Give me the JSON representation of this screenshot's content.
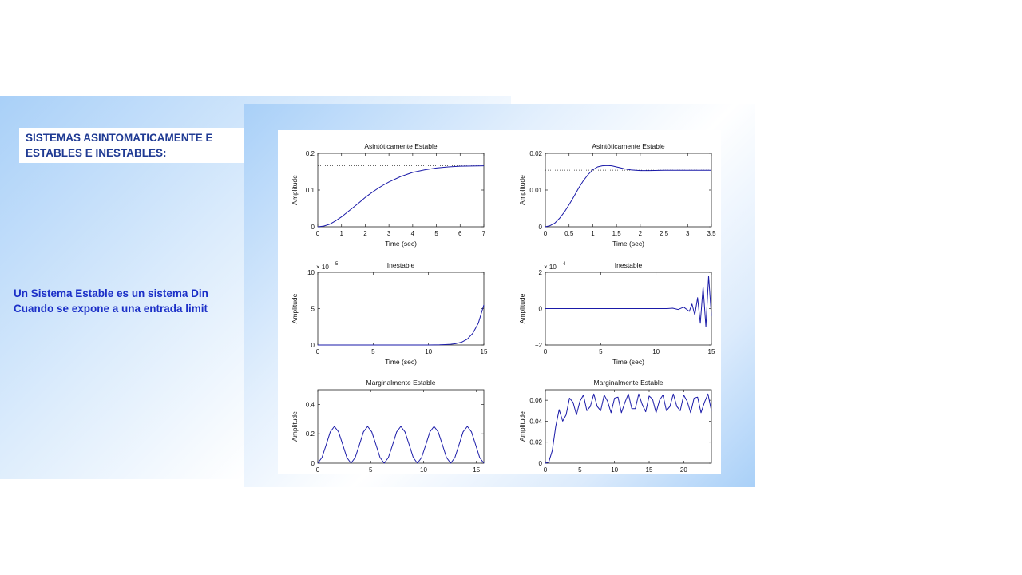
{
  "slide": {
    "title_line1": "SISTEMAS ASINTOMATICAMENTE E",
    "title_line2": "ESTABLES E INESTABLES:",
    "body_line1": "Un Sistema Estable es un sistema Din",
    "body_line2": "Cuando se expone a una entrada limit"
  },
  "colors": {
    "curve": "#1a1aa8",
    "title_text": "#1f3a93",
    "body_text": "#1b2fc7"
  },
  "chart_data": [
    {
      "type": "line",
      "title": "Asintóticamente Estable",
      "xlabel": "Time (sec)",
      "ylabel": "Amplitude",
      "exponent": "",
      "xlim": [
        0,
        7
      ],
      "ylim": [
        0,
        0.2
      ],
      "xticks": [
        "0",
        "1",
        "2",
        "3",
        "4",
        "5",
        "6",
        "7"
      ],
      "yticks": [
        "0",
        "0.1",
        "0.2"
      ],
      "x": [
        0,
        0.25,
        0.5,
        0.75,
        1,
        1.25,
        1.5,
        1.75,
        2,
        2.25,
        2.5,
        2.75,
        3,
        3.5,
        4,
        4.5,
        5,
        5.5,
        6,
        7
      ],
      "y": [
        0,
        0.002,
        0.007,
        0.016,
        0.027,
        0.04,
        0.053,
        0.066,
        0.08,
        0.092,
        0.103,
        0.113,
        0.122,
        0.137,
        0.148,
        0.155,
        0.16,
        0.163,
        0.165,
        0.166
      ],
      "reference_line": 0.166
    },
    {
      "type": "line",
      "title": "Asintóticamente Estable",
      "xlabel": "Time (sec)",
      "ylabel": "Amplitude",
      "exponent": "",
      "xlim": [
        0,
        3.5
      ],
      "ylim": [
        0,
        0.02
      ],
      "xticks": [
        "0",
        "0.5",
        "1",
        "1.5",
        "2",
        "2.5",
        "3",
        "3.5"
      ],
      "yticks": [
        "0",
        "0.01",
        "0.02"
      ],
      "x": [
        0,
        0.1,
        0.2,
        0.3,
        0.4,
        0.5,
        0.6,
        0.7,
        0.8,
        0.9,
        1,
        1.1,
        1.2,
        1.3,
        1.4,
        1.5,
        1.6,
        1.7,
        1.8,
        1.9,
        2,
        2.2,
        2.5,
        3,
        3.5
      ],
      "y": [
        0,
        0.0003,
        0.001,
        0.0023,
        0.004,
        0.006,
        0.0082,
        0.0105,
        0.0125,
        0.0142,
        0.0155,
        0.0163,
        0.0166,
        0.0167,
        0.0166,
        0.0163,
        0.016,
        0.0157,
        0.0155,
        0.0154,
        0.0153,
        0.0153,
        0.0154,
        0.0154,
        0.0154
      ],
      "reference_line": 0.0154
    },
    {
      "type": "line",
      "title": "Inestable",
      "xlabel": "Time (sec)",
      "ylabel": "Amplitude",
      "exponent": "5",
      "xlim": [
        0,
        15
      ],
      "ylim": [
        0,
        10
      ],
      "xticks": [
        "0",
        "5",
        "10",
        "15"
      ],
      "yticks": [
        "0",
        "5",
        "10"
      ],
      "x": [
        0,
        5,
        10,
        11,
        11.5,
        12,
        12.5,
        13,
        13.5,
        14,
        14.5,
        15
      ],
      "y": [
        0,
        0,
        0,
        0.02,
        0.05,
        0.1,
        0.2,
        0.4,
        0.8,
        1.6,
        3,
        5.5
      ]
    },
    {
      "type": "line",
      "title": "Inestable",
      "xlabel": "Time (sec)",
      "ylabel": "Amplitude",
      "exponent": "4",
      "xlim": [
        0,
        15
      ],
      "ylim": [
        -2,
        2
      ],
      "xticks": [
        "0",
        "5",
        "10",
        "15"
      ],
      "yticks": [
        "-2",
        "0",
        "2"
      ],
      "x": [
        0,
        1,
        2,
        3,
        4,
        5,
        6,
        7,
        8,
        9,
        10,
        11,
        11.5,
        12,
        12.5,
        13,
        13.25,
        13.5,
        13.75,
        14,
        14.25,
        14.5,
        14.75,
        15
      ],
      "y": [
        0,
        0,
        0,
        0,
        0,
        0,
        0,
        0,
        0,
        0,
        0,
        0,
        0.02,
        -0.05,
        0.08,
        -0.15,
        0.25,
        -0.35,
        0.6,
        -0.8,
        1.2,
        -1.0,
        1.8,
        -0.4
      ]
    },
    {
      "type": "line",
      "title": "Marginalmente Estable",
      "xlabel": "",
      "ylabel": "Amplitude",
      "exponent": "",
      "xlim": [
        0,
        15.7
      ],
      "ylim": [
        0,
        0.5
      ],
      "xticks": [
        "0",
        "5",
        "10",
        "15"
      ],
      "yticks": [
        "0",
        "0.2",
        "0.4"
      ],
      "x": [
        0,
        0.39,
        0.79,
        1.18,
        1.57,
        1.96,
        2.36,
        2.75,
        3.14,
        3.53,
        3.93,
        4.32,
        4.71,
        5.1,
        5.5,
        5.89,
        6.28,
        6.67,
        7.07,
        7.46,
        7.85,
        8.24,
        8.64,
        9.03,
        9.42,
        9.81,
        10.21,
        10.6,
        10.99,
        11.38,
        11.78,
        12.17,
        12.57,
        12.96,
        13.35,
        13.74,
        14.14,
        14.53,
        14.92,
        15.31,
        15.7
      ],
      "y": [
        0,
        0.038,
        0.125,
        0.213,
        0.25,
        0.213,
        0.125,
        0.038,
        0,
        0.038,
        0.125,
        0.213,
        0.25,
        0.213,
        0.125,
        0.038,
        0,
        0.038,
        0.125,
        0.213,
        0.25,
        0.213,
        0.125,
        0.038,
        0,
        0.038,
        0.125,
        0.213,
        0.25,
        0.213,
        0.125,
        0.038,
        0,
        0.038,
        0.125,
        0.213,
        0.25,
        0.213,
        0.125,
        0.038,
        0
      ]
    },
    {
      "type": "line",
      "title": "Marginalmente Estable",
      "xlabel": "",
      "ylabel": "Amplitude",
      "exponent": "",
      "xlim": [
        0,
        24
      ],
      "ylim": [
        0,
        0.07
      ],
      "xticks": [
        "0",
        "5",
        "10",
        "15",
        "20"
      ],
      "yticks": [
        "0",
        "0.02",
        "0.04",
        "0.06"
      ],
      "x": [
        0,
        0.5,
        1,
        1.5,
        2,
        2.5,
        3,
        3.5,
        4,
        4.5,
        5,
        5.5,
        6,
        6.5,
        7,
        7.5,
        8,
        8.5,
        9,
        9.5,
        10,
        10.5,
        11,
        11.5,
        12,
        12.5,
        13,
        13.5,
        14,
        14.5,
        15,
        15.5,
        16,
        16.5,
        17,
        17.5,
        18,
        18.5,
        19,
        19.5,
        20,
        20.5,
        21,
        21.5,
        22,
        22.5,
        23,
        23.5,
        24
      ],
      "y": [
        0,
        0.001,
        0.012,
        0.035,
        0.051,
        0.04,
        0.046,
        0.062,
        0.058,
        0.046,
        0.059,
        0.065,
        0.05,
        0.054,
        0.066,
        0.054,
        0.05,
        0.065,
        0.059,
        0.048,
        0.062,
        0.063,
        0.048,
        0.058,
        0.066,
        0.052,
        0.052,
        0.066,
        0.056,
        0.049,
        0.064,
        0.061,
        0.048,
        0.06,
        0.065,
        0.05,
        0.054,
        0.066,
        0.054,
        0.05,
        0.065,
        0.059,
        0.048,
        0.062,
        0.063,
        0.048,
        0.058,
        0.066,
        0.05
      ]
    }
  ]
}
